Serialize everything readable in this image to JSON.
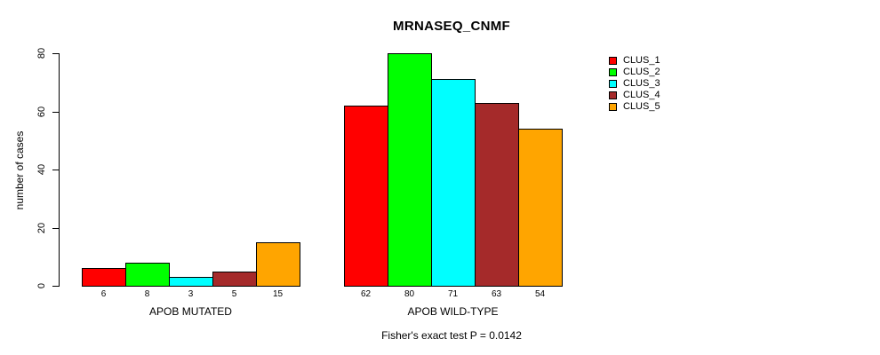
{
  "chart_data": {
    "type": "bar",
    "title": "MRNASEQ_CNMF",
    "ylabel": "number of cases",
    "xlabel": "",
    "ylim": [
      0,
      80
    ],
    "yticks": [
      0,
      20,
      40,
      60,
      80
    ],
    "categories": [
      "APOB MUTATED",
      "APOB WILD-TYPE"
    ],
    "series": [
      {
        "name": "CLUS_1",
        "color": "#ff0000",
        "values": [
          6,
          62
        ]
      },
      {
        "name": "CLUS_2",
        "color": "#00ff00",
        "values": [
          8,
          80
        ]
      },
      {
        "name": "CLUS_3",
        "color": "#00ffff",
        "values": [
          3,
          71
        ]
      },
      {
        "name": "CLUS_4",
        "color": "#a52a2a",
        "values": [
          5,
          63
        ]
      },
      {
        "name": "CLUS_5",
        "color": "#ffa500",
        "values": [
          15,
          54
        ]
      }
    ],
    "bar_value_labels_shown": true,
    "legend_position": "right",
    "legend_entries": [
      "CLUS_1",
      "CLUS_2",
      "CLUS_3",
      "CLUS_4",
      "CLUS_5"
    ],
    "annotation": "Fisher's exact test P = 0.0142",
    "grid": false,
    "background_color": "#ffffff",
    "axis_color": "#000000",
    "bar_border_color": "#000000"
  }
}
